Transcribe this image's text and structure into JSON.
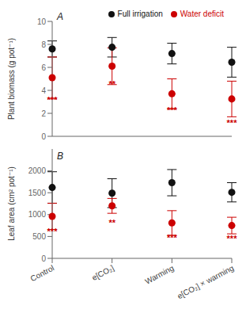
{
  "chart_data": [
    {
      "type": "scatter",
      "title": "A",
      "ylabel": "Plant biomass (g pot⁻¹)",
      "categories": [
        "Control",
        "e[CO₂]",
        "Warming",
        "e[CO₂] × warming"
      ],
      "series": [
        {
          "name": "Full irrigation",
          "color": "#111111",
          "marker": "circle",
          "values": [
            7.6,
            7.75,
            7.2,
            6.45
          ],
          "errors": [
            0.7,
            0.85,
            0.9,
            1.3
          ]
        },
        {
          "name": "Water deficit",
          "color": "#cc0000",
          "marker": "circle",
          "values": [
            5.1,
            6.1,
            3.7,
            3.25
          ],
          "errors": [
            1.8,
            1.6,
            1.3,
            1.55
          ]
        }
      ],
      "annotations": [
        {
          "text": "***",
          "x": "Control",
          "y": 3.15,
          "color": "#cc0000"
        },
        {
          "text": "**",
          "x": "e[CO₂]",
          "y": 4.55,
          "color": "#cc0000"
        },
        {
          "text": "***",
          "x": "Warming",
          "y": 2.3,
          "color": "#cc0000"
        },
        {
          "text": "***",
          "x": "e[CO₂] × warming",
          "y": 1.2,
          "color": "#cc0000"
        }
      ],
      "ylim": [
        0,
        10
      ],
      "yticks": [
        0,
        2,
        4,
        6,
        8,
        10
      ],
      "legend": "upper right",
      "tick_labels": "y"
    },
    {
      "type": "scatter",
      "title": "B",
      "ylabel": "Leaf area (cm² pot⁻¹)",
      "categories": [
        "Control",
        "e[CO₂]",
        "Warming",
        "e[CO₂] × warming"
      ],
      "series": [
        {
          "name": "Full irrigation",
          "color": "#111111",
          "marker": "circle",
          "values": [
            1620,
            1490,
            1730,
            1510
          ],
          "errors": [
            360,
            330,
            300,
            220
          ]
        },
        {
          "name": "Water deficit",
          "color": "#cc0000",
          "marker": "circle",
          "values": [
            960,
            1200,
            810,
            750
          ],
          "errors": [
            300,
            170,
            280,
            190
          ]
        }
      ],
      "annotations": [
        {
          "text": "***",
          "x": "Control",
          "y": 620,
          "color": "#cc0000"
        },
        {
          "text": "**",
          "x": "e[CO₂]",
          "y": 810,
          "color": "#cc0000"
        },
        {
          "text": "***",
          "x": "Warming",
          "y": 470,
          "color": "#cc0000"
        },
        {
          "text": "***",
          "x": "e[CO₂] × warming",
          "y": 455,
          "color": "#cc0000"
        }
      ],
      "ylim": [
        0,
        2500
      ],
      "yticks": [
        0,
        500,
        1000,
        1500,
        2000
      ]
    }
  ]
}
